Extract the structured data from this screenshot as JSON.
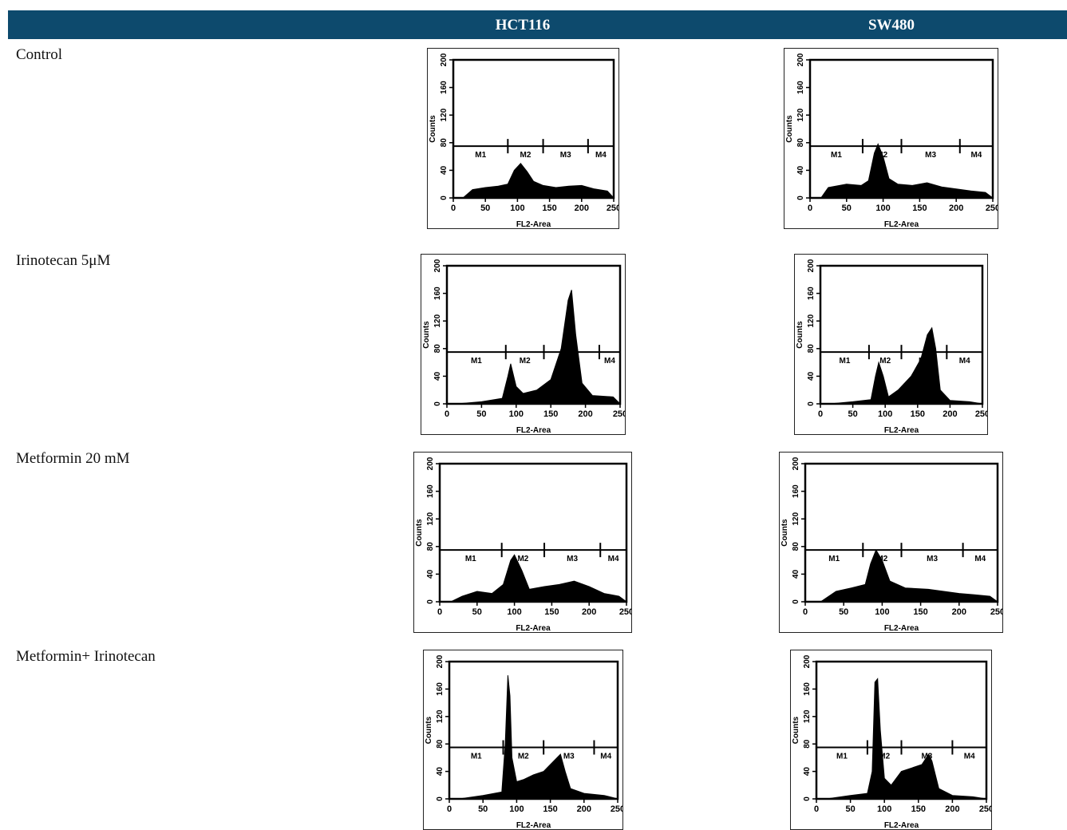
{
  "table": {
    "columns": [
      "HCT116",
      "SW480"
    ],
    "rows": [
      {
        "label": "Control"
      },
      {
        "label": "Irinotecan 5μM"
      },
      {
        "label": "Metformin 20 mM"
      },
      {
        "label": "Metformin+ Irinotecan"
      }
    ]
  },
  "histogram": {
    "xlabel": "FL2-Area",
    "ylabel": "Counts",
    "xticks": [
      "0",
      "50",
      "100",
      "150",
      "200",
      "250"
    ],
    "yticks": [
      "0",
      "40",
      "80",
      "120",
      "160",
      "200"
    ],
    "xlim": [
      0,
      250
    ],
    "ylim": [
      0,
      200
    ]
  },
  "chart_data": [
    {
      "type": "area",
      "row": "Control",
      "column": "HCT116",
      "xlabel": "FL2-Area",
      "ylabel": "Counts",
      "xlim": [
        0,
        250
      ],
      "ylim": [
        0,
        200
      ],
      "markers": [
        {
          "name": "M1",
          "x": [
            0,
            85
          ]
        },
        {
          "name": "M2",
          "x": [
            85,
            140
          ]
        },
        {
          "name": "M3",
          "x": [
            140,
            210
          ]
        },
        {
          "name": "M4",
          "x": [
            210,
            250
          ]
        }
      ],
      "x": [
        15,
        30,
        50,
        70,
        85,
        95,
        105,
        115,
        125,
        140,
        160,
        180,
        200,
        220,
        240,
        250
      ],
      "y": [
        0,
        12,
        15,
        17,
        20,
        40,
        50,
        38,
        24,
        18,
        15,
        17,
        18,
        13,
        10,
        0
      ]
    },
    {
      "type": "area",
      "row": "Control",
      "column": "SW480",
      "xlabel": "FL2-Area",
      "ylabel": "Counts",
      "xlim": [
        0,
        250
      ],
      "ylim": [
        0,
        200
      ],
      "markers": [
        {
          "name": "M1",
          "x": [
            0,
            72
          ]
        },
        {
          "name": "M2",
          "x": [
            72,
            125
          ]
        },
        {
          "name": "M3",
          "x": [
            125,
            205
          ]
        },
        {
          "name": "M4",
          "x": [
            205,
            250
          ]
        }
      ],
      "x": [
        15,
        25,
        50,
        70,
        80,
        88,
        93,
        100,
        108,
        120,
        140,
        160,
        180,
        200,
        220,
        240,
        250
      ],
      "y": [
        0,
        15,
        20,
        18,
        25,
        65,
        78,
        60,
        28,
        20,
        18,
        22,
        16,
        13,
        10,
        8,
        0
      ]
    },
    {
      "type": "area",
      "row": "Irinotecan 5μM",
      "column": "HCT116",
      "xlabel": "FL2-Area",
      "ylabel": "Counts",
      "xlim": [
        0,
        250
      ],
      "ylim": [
        0,
        200
      ],
      "markers": [
        {
          "name": "M1",
          "x": [
            0,
            85
          ]
        },
        {
          "name": "M2",
          "x": [
            85,
            140
          ]
        },
        {
          "name": "M3",
          "x": [
            140,
            220
          ]
        },
        {
          "name": "M4",
          "x": [
            220,
            250
          ]
        }
      ],
      "x": [
        15,
        50,
        80,
        88,
        92,
        100,
        110,
        130,
        150,
        165,
        175,
        180,
        186,
        195,
        210,
        240,
        250
      ],
      "y": [
        0,
        3,
        8,
        40,
        58,
        25,
        15,
        20,
        35,
        80,
        150,
        165,
        100,
        30,
        12,
        10,
        0
      ]
    },
    {
      "type": "area",
      "row": "Irinotecan 5μM",
      "column": "SW480",
      "xlabel": "FL2-Area",
      "ylabel": "Counts",
      "xlim": [
        0,
        250
      ],
      "ylim": [
        0,
        200
      ],
      "markers": [
        {
          "name": "M1",
          "x": [
            0,
            75
          ]
        },
        {
          "name": "M2",
          "x": [
            75,
            125
          ]
        },
        {
          "name": "M3",
          "x": [
            125,
            195
          ]
        },
        {
          "name": "M4",
          "x": [
            195,
            250
          ]
        }
      ],
      "x": [
        15,
        50,
        78,
        85,
        90,
        97,
        105,
        120,
        140,
        155,
        165,
        172,
        178,
        185,
        200,
        230,
        250
      ],
      "y": [
        0,
        3,
        6,
        40,
        60,
        40,
        10,
        20,
        40,
        65,
        100,
        110,
        80,
        20,
        5,
        3,
        0
      ]
    },
    {
      "type": "area",
      "row": "Metformin 20 mM",
      "column": "HCT116",
      "xlabel": "FL2-Area",
      "ylabel": "Counts",
      "xlim": [
        0,
        250
      ],
      "ylim": [
        0,
        200
      ],
      "markers": [
        {
          "name": "M1",
          "x": [
            0,
            83
          ]
        },
        {
          "name": "M2",
          "x": [
            83,
            140
          ]
        },
        {
          "name": "M3",
          "x": [
            140,
            215
          ]
        },
        {
          "name": "M4",
          "x": [
            215,
            250
          ]
        }
      ],
      "x": [
        15,
        30,
        50,
        70,
        85,
        95,
        100,
        110,
        120,
        140,
        160,
        180,
        200,
        220,
        240,
        250
      ],
      "y": [
        0,
        8,
        15,
        12,
        25,
        60,
        68,
        45,
        18,
        22,
        25,
        30,
        22,
        12,
        8,
        0
      ]
    },
    {
      "type": "area",
      "row": "Metformin 20 mM",
      "column": "SW480",
      "xlabel": "FL2-Area",
      "ylabel": "Counts",
      "xlim": [
        0,
        250
      ],
      "ylim": [
        0,
        200
      ],
      "markers": [
        {
          "name": "M1",
          "x": [
            0,
            75
          ]
        },
        {
          "name": "M2",
          "x": [
            75,
            125
          ]
        },
        {
          "name": "M3",
          "x": [
            125,
            205
          ]
        },
        {
          "name": "M4",
          "x": [
            205,
            250
          ]
        }
      ],
      "x": [
        20,
        40,
        60,
        78,
        85,
        92,
        100,
        110,
        130,
        160,
        180,
        200,
        220,
        240,
        250
      ],
      "y": [
        0,
        15,
        20,
        25,
        55,
        75,
        60,
        30,
        20,
        18,
        15,
        12,
        10,
        8,
        0
      ]
    },
    {
      "type": "area",
      "row": "Metformin+ Irinotecan",
      "column": "HCT116",
      "xlabel": "FL2-Area",
      "ylabel": "Counts",
      "xlim": [
        0,
        250
      ],
      "ylim": [
        0,
        200
      ],
      "markers": [
        {
          "name": "M1",
          "x": [
            0,
            80
          ]
        },
        {
          "name": "M2",
          "x": [
            80,
            140
          ]
        },
        {
          "name": "M3",
          "x": [
            140,
            215
          ]
        },
        {
          "name": "M4",
          "x": [
            215,
            250
          ]
        }
      ],
      "x": [
        15,
        50,
        78,
        83,
        87,
        90,
        93,
        100,
        110,
        125,
        140,
        155,
        165,
        172,
        180,
        200,
        230,
        250
      ],
      "y": [
        0,
        5,
        10,
        80,
        180,
        150,
        60,
        25,
        28,
        35,
        40,
        55,
        65,
        40,
        15,
        8,
        5,
        0
      ]
    },
    {
      "type": "area",
      "row": "Metformin+ Irinotecan",
      "column": "SW480",
      "xlabel": "FL2-Area",
      "ylabel": "Counts",
      "xlim": [
        0,
        250
      ],
      "ylim": [
        0,
        200
      ],
      "markers": [
        {
          "name": "M1",
          "x": [
            0,
            75
          ]
        },
        {
          "name": "M2",
          "x": [
            75,
            125
          ]
        },
        {
          "name": "M3",
          "x": [
            125,
            200
          ]
        },
        {
          "name": "M4",
          "x": [
            200,
            250
          ]
        }
      ],
      "x": [
        15,
        50,
        75,
        82,
        86,
        90,
        94,
        100,
        110,
        125,
        140,
        155,
        165,
        170,
        180,
        200,
        230,
        250
      ],
      "y": [
        0,
        5,
        8,
        40,
        170,
        175,
        100,
        30,
        20,
        40,
        45,
        50,
        65,
        55,
        15,
        5,
        3,
        0
      ]
    }
  ]
}
